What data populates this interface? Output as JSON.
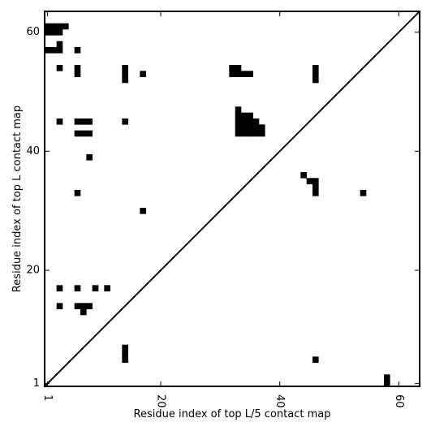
{
  "chart_data": {
    "type": "heatmap",
    "title": "",
    "xlabel": "Residue index of top L/5 contact map",
    "ylabel": "Residue index of top L contact map",
    "xlim": [
      0.5,
      63.5
    ],
    "ylim": [
      0.5,
      63.5
    ],
    "x_ticks": [
      1,
      20,
      40,
      60
    ],
    "y_ticks": [
      1,
      20,
      40,
      60
    ],
    "x_tick_rotation": -90,
    "diagonal": true,
    "cell_color": "#000000",
    "background_color": "#ffffff",
    "upper_triangle_contacts": [
      [
        1,
        61
      ],
      [
        2,
        61
      ],
      [
        3,
        61
      ],
      [
        4,
        61
      ],
      [
        1,
        60
      ],
      [
        2,
        60
      ],
      [
        3,
        60
      ],
      [
        1,
        57
      ],
      [
        2,
        57
      ],
      [
        3,
        57
      ],
      [
        3,
        58
      ],
      [
        6,
        57
      ],
      [
        3,
        54
      ],
      [
        6,
        54
      ],
      [
        6,
        53
      ],
      [
        14,
        52
      ],
      [
        14,
        53
      ],
      [
        14,
        54
      ],
      [
        17,
        53
      ],
      [
        32,
        53
      ],
      [
        33,
        53
      ],
      [
        34,
        53
      ],
      [
        35,
        53
      ],
      [
        32,
        54
      ],
      [
        33,
        54
      ],
      [
        46,
        52
      ],
      [
        46,
        53
      ],
      [
        46,
        54
      ],
      [
        3,
        45
      ],
      [
        6,
        45
      ],
      [
        7,
        45
      ],
      [
        8,
        45
      ],
      [
        14,
        45
      ],
      [
        6,
        43
      ],
      [
        7,
        43
      ],
      [
        8,
        43
      ],
      [
        8,
        39
      ],
      [
        33,
        43
      ],
      [
        34,
        43
      ],
      [
        35,
        43
      ],
      [
        36,
        43
      ],
      [
        37,
        43
      ],
      [
        33,
        44
      ],
      [
        34,
        44
      ],
      [
        35,
        44
      ],
      [
        36,
        44
      ],
      [
        37,
        44
      ],
      [
        33,
        45
      ],
      [
        34,
        45
      ],
      [
        35,
        45
      ],
      [
        36,
        45
      ],
      [
        33,
        46
      ],
      [
        34,
        46
      ],
      [
        35,
        46
      ],
      [
        33,
        47
      ],
      [
        44,
        36
      ],
      [
        45,
        35
      ],
      [
        46,
        35
      ],
      [
        46,
        34
      ],
      [
        46,
        33
      ],
      [
        6,
        33
      ],
      [
        54,
        33
      ],
      [
        17,
        30
      ]
    ],
    "lower_triangle_contacts": [
      [
        3,
        17
      ],
      [
        6,
        17
      ],
      [
        9,
        17
      ],
      [
        11,
        17
      ],
      [
        3,
        14
      ],
      [
        6,
        14
      ],
      [
        7,
        14
      ],
      [
        8,
        14
      ],
      [
        7,
        13
      ],
      [
        14,
        7
      ],
      [
        14,
        6
      ],
      [
        14,
        5
      ],
      [
        46,
        5
      ],
      [
        58,
        1
      ],
      [
        58,
        2
      ]
    ]
  }
}
